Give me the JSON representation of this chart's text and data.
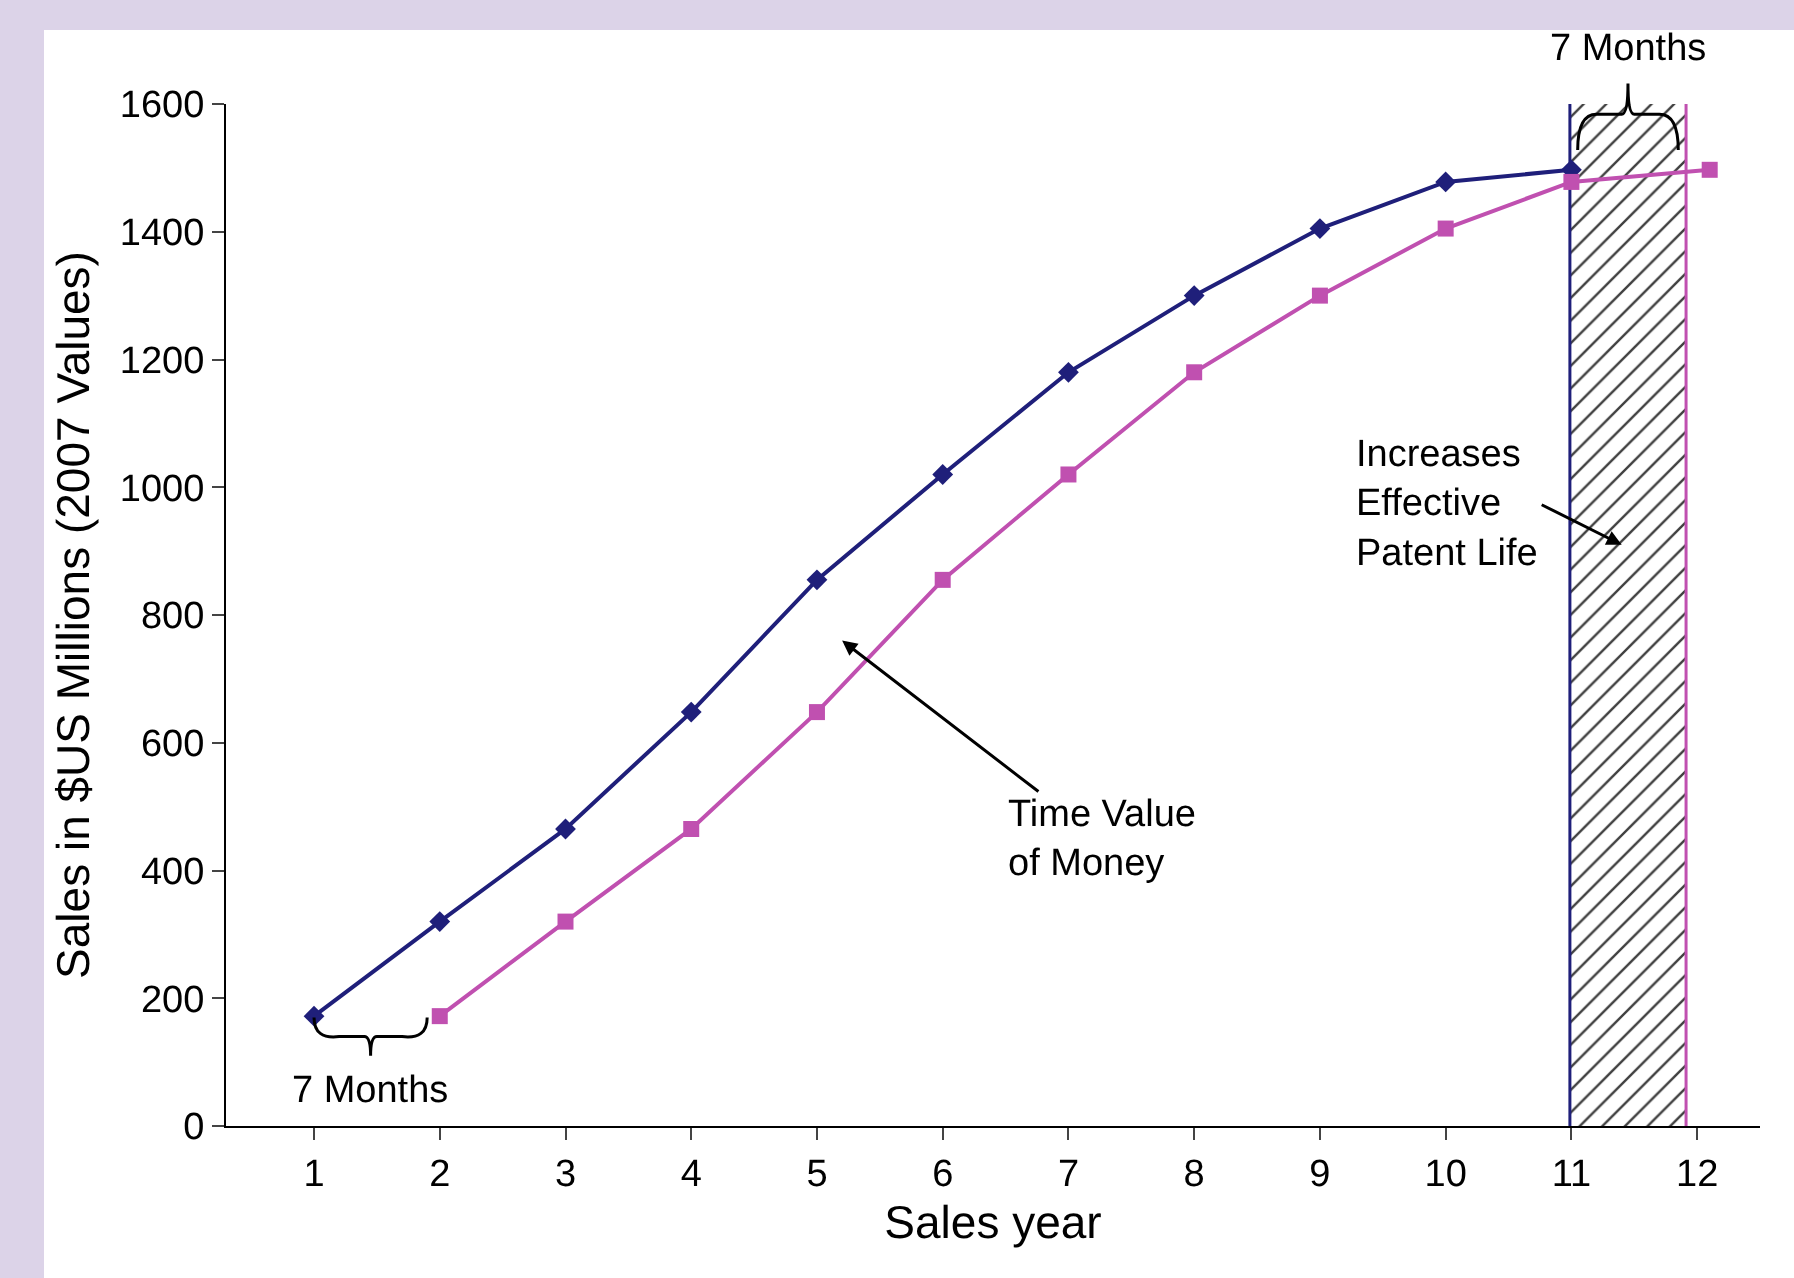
{
  "chart_data": {
    "type": "line",
    "xlabel": "Sales year",
    "ylabel": "Sales in $US Millions (2007 Values)",
    "xlim": [
      0.3,
      12.5
    ],
    "xticks": [
      1,
      2,
      3,
      4,
      5,
      6,
      7,
      8,
      9,
      10,
      11,
      12
    ],
    "ylim": [
      0,
      1600
    ],
    "yticks": [
      0,
      200,
      400,
      600,
      800,
      1000,
      1200,
      1400,
      1600
    ],
    "grid": false,
    "series": [
      {
        "color": "#1f1f7a",
        "marker": "diamond",
        "x": [
          1,
          2,
          3,
          4,
          5,
          6,
          7,
          8,
          9,
          10,
          11
        ],
        "values": [
          172,
          320,
          465,
          648,
          855,
          1020,
          1180,
          1300,
          1405,
          1478,
          1497
        ]
      },
      {
        "color": "#c050b0",
        "marker": "square",
        "x": [
          2,
          3,
          4,
          5,
          6,
          7,
          8,
          9,
          10,
          11,
          12.1
        ],
        "values": [
          172,
          320,
          465,
          648,
          855,
          1020,
          1180,
          1300,
          1405,
          1478,
          1497
        ]
      }
    ],
    "ref_lines": [
      {
        "axis": "x",
        "value": 11,
        "color": "#1f1f7a"
      },
      {
        "axis": "x",
        "value": 11.9,
        "color": "#c050b0"
      }
    ],
    "bands": [
      {
        "axis": "x",
        "from": 11,
        "to": 11.9,
        "color": "#404040"
      }
    ],
    "annotations": [
      "7 Months",
      "7 Months",
      "Time Value of Money",
      "Increases Effective Patent Life"
    ]
  }
}
